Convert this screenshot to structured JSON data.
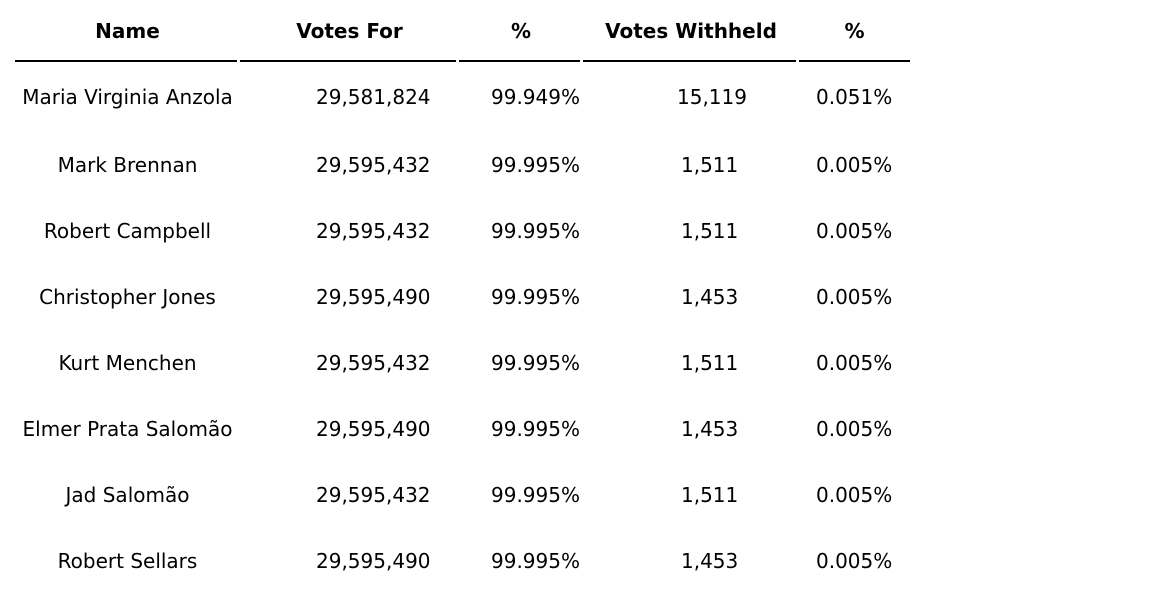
{
  "table": {
    "headers": {
      "name": "Name",
      "votes_for": "Votes For",
      "pct_for": "%",
      "votes_withheld": "Votes Withheld",
      "pct_withheld": "%"
    },
    "rows": [
      {
        "name": "Maria Virginia Anzola",
        "votes_for": "29,581,824",
        "pct_for": "99.949%",
        "votes_withheld": "15,119",
        "pct_withheld": "0.051%"
      },
      {
        "name": "Mark Brennan",
        "votes_for": "29,595,432",
        "pct_for": "99.995%",
        "votes_withheld": "1,511",
        "pct_withheld": "0.005%"
      },
      {
        "name": "Robert Campbell",
        "votes_for": "29,595,432",
        "pct_for": "99.995%",
        "votes_withheld": "1,511",
        "pct_withheld": "0.005%"
      },
      {
        "name": "Christopher Jones",
        "votes_for": "29,595,490",
        "pct_for": "99.995%",
        "votes_withheld": "1,453",
        "pct_withheld": "0.005%"
      },
      {
        "name": "Kurt Menchen",
        "votes_for": "29,595,432",
        "pct_for": "99.995%",
        "votes_withheld": "1,511",
        "pct_withheld": "0.005%"
      },
      {
        "name": "Elmer Prata Salomão",
        "votes_for": "29,595,490",
        "pct_for": "99.995%",
        "votes_withheld": "1,453",
        "pct_withheld": "0.005%"
      },
      {
        "name": "Jad Salomão",
        "votes_for": "29,595,432",
        "pct_for": "99.995%",
        "votes_withheld": "1,511",
        "pct_withheld": "0.005%"
      },
      {
        "name": "Robert Sellars",
        "votes_for": "29,595,490",
        "pct_for": "99.995%",
        "votes_withheld": "1,453",
        "pct_withheld": "0.005%"
      }
    ]
  }
}
